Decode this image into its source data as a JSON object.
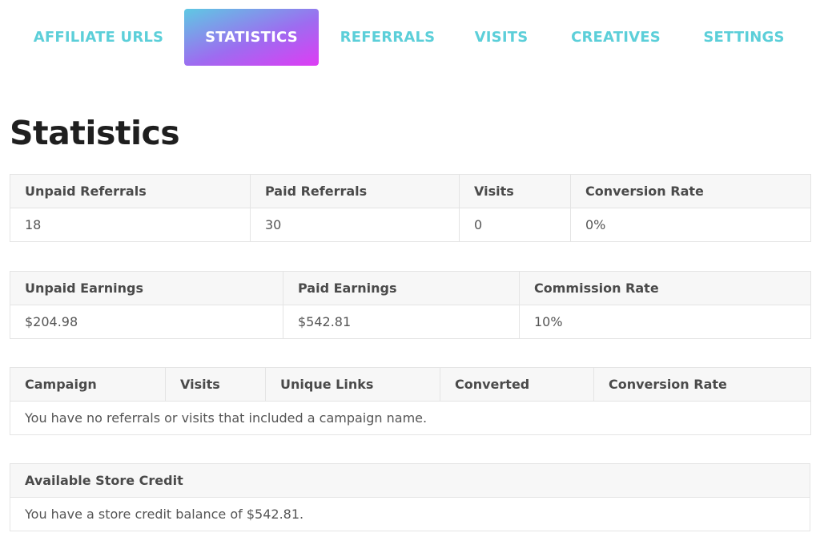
{
  "tabs": [
    {
      "label": "AFFILIATE URLS",
      "active": false
    },
    {
      "label": "STATISTICS",
      "active": true
    },
    {
      "label": "REFERRALS",
      "active": false
    },
    {
      "label": "VISITS",
      "active": false
    },
    {
      "label": "CREATIVES",
      "active": false
    },
    {
      "label": "SETTINGS",
      "active": false
    }
  ],
  "colors": {
    "tab_text": "#5ccfd9",
    "active_gradient_start": "#5ec9e3",
    "active_gradient_end": "#de3cf4",
    "table_header_bg": "#f7f7f7",
    "border": "#e4e4e4"
  },
  "page_title": "Statistics",
  "referrals_table": {
    "headers": [
      "Unpaid Referrals",
      "Paid Referrals",
      "Visits",
      "Conversion Rate"
    ],
    "values": [
      "18",
      "30",
      "0",
      "0%"
    ]
  },
  "earnings_table": {
    "headers": [
      "Unpaid Earnings",
      "Paid Earnings",
      "Commission Rate"
    ],
    "values": [
      "$204.98",
      "$542.81",
      "10%"
    ]
  },
  "campaign_table": {
    "headers": [
      "Campaign",
      "Visits",
      "Unique Links",
      "Converted",
      "Conversion Rate"
    ],
    "empty_message": "You have no referrals or visits that included a campaign name."
  },
  "store_credit_table": {
    "header": "Available Store Credit",
    "message": "You have a store credit balance of $542.81."
  }
}
